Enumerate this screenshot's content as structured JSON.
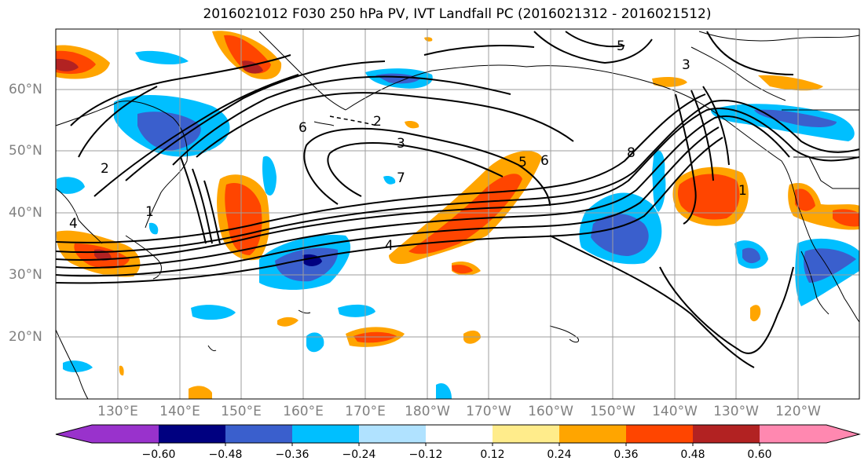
{
  "title": "2016021012 F030 250 hPa PV, IVT Landfall PC (2016021312 - 2016021512)",
  "lat_labels": [
    "60°N",
    "50°N",
    "40°N",
    "30°N",
    "20°N"
  ],
  "lon_labels": [
    "130°E",
    "140°E",
    "150°E",
    "160°E",
    "170°E",
    "180°W",
    "170°W",
    "160°W",
    "150°W",
    "140°W",
    "130°W",
    "120°W"
  ],
  "contour_labels": [
    "1",
    "2",
    "3",
    "4",
    "5",
    "6",
    "7",
    "8",
    "6",
    "5",
    "4",
    "3",
    "2",
    "1"
  ],
  "colorbar": {
    "ticks": [
      "−0.60",
      "−0.48",
      "−0.36",
      "−0.24",
      "−0.12",
      "0.12",
      "0.24",
      "0.36",
      "0.48",
      "0.60"
    ],
    "colors": [
      "#9932cc",
      "#000080",
      "#3a5fcd",
      "#00bfff",
      "#b0e2ff",
      "#ffffff",
      "#ffec8b",
      "#ffa500",
      "#ff4500",
      "#b22222",
      "#ff88b0"
    ]
  },
  "colors": {
    "contour": "#000000",
    "grid": "#808080",
    "coast": "#000000"
  }
}
